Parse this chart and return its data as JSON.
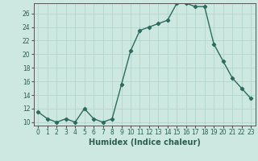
{
  "x": [
    0,
    1,
    2,
    3,
    4,
    5,
    6,
    7,
    8,
    9,
    10,
    11,
    12,
    13,
    14,
    15,
    16,
    17,
    18,
    19,
    20,
    21,
    22,
    23
  ],
  "y": [
    11.5,
    10.5,
    10.0,
    10.5,
    10.0,
    12.0,
    10.5,
    10.0,
    10.5,
    15.5,
    20.5,
    23.5,
    24.0,
    24.5,
    25.0,
    27.5,
    27.5,
    27.0,
    27.0,
    21.5,
    19.0,
    16.5,
    15.0,
    13.5
  ],
  "line_color": "#2e6b5e",
  "marker": "D",
  "markersize": 2.2,
  "linewidth": 1.0,
  "bg_color": "#cce8e0",
  "grid_color": "#b0d0c8",
  "xlabel": "Humidex (Indice chaleur)",
  "xlim": [
    -0.5,
    23.5
  ],
  "ylim": [
    9.5,
    27.5
  ],
  "yticks": [
    10,
    12,
    14,
    16,
    18,
    20,
    22,
    24,
    26
  ],
  "xticks": [
    0,
    1,
    2,
    3,
    4,
    5,
    6,
    7,
    8,
    9,
    10,
    11,
    12,
    13,
    14,
    15,
    16,
    17,
    18,
    19,
    20,
    21,
    22,
    23
  ],
  "tick_fontsize": 5.5,
  "xlabel_fontsize": 7.0
}
